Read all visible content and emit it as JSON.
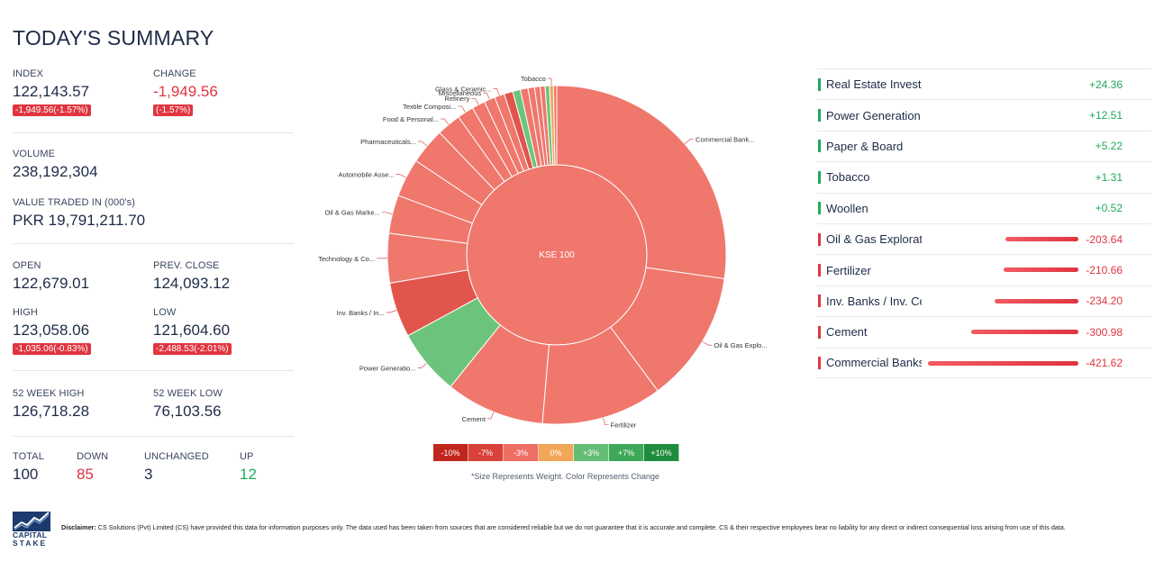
{
  "title": "TODAY'S SUMMARY",
  "stats": {
    "index_label": "INDEX",
    "index_value": "122,143.57",
    "index_badge": "-1,949.56(-1.57%)",
    "change_label": "CHANGE",
    "change_value": "-1,949.56",
    "change_badge": "(-1.57%)",
    "volume_label": "VOLUME",
    "volume_value": "238,192,304",
    "value_traded_label": "VALUE TRADED IN (000's)",
    "value_traded_value": "PKR 19,791,211.70",
    "open_label": "OPEN",
    "open_value": "122,679.01",
    "prev_close_label": "PREV. CLOSE",
    "prev_close_value": "124,093.12",
    "high_label": "HIGH",
    "high_value": "123,058.06",
    "high_badge": "-1,035.06(-0.83%)",
    "low_label": "LOW",
    "low_value": "121,604.60",
    "low_badge": "-2,488.53(-2.01%)",
    "week52_high_label": "52 WEEK HIGH",
    "week52_high_value": "126,718.28",
    "week52_low_label": "52 WEEK LOW",
    "week52_low_value": "76,103.56",
    "total_label": "TOTAL",
    "total_value": "100",
    "down_label": "DOWN",
    "down_value": "85",
    "unchanged_label": "UNCHANGED",
    "unchanged_value": "3",
    "up_label": "UP",
    "up_value": "12"
  },
  "chart_data": {
    "type": "sunburst",
    "center_label": "KSE 100",
    "sectors": [
      {
        "label": "Commercial Bank...",
        "weight": 26.0,
        "change": -1.9,
        "show_label": true
      },
      {
        "label": "Oil & Gas Explo...",
        "weight": 12.0,
        "change": -2.5,
        "show_label": true
      },
      {
        "label": "Fertilizer",
        "weight": 11.0,
        "change": -2.2,
        "show_label": true
      },
      {
        "label": "Cement",
        "weight": 9.0,
        "change": -2.4,
        "show_label": true
      },
      {
        "label": "Power Generatio...",
        "weight": 6.0,
        "change": 2.8,
        "show_label": true
      },
      {
        "label": "Inv. Banks / In...",
        "weight": 5.0,
        "change": -4.5,
        "show_label": true
      },
      {
        "label": "Technology & Co...",
        "weight": 4.5,
        "change": -2.0,
        "show_label": true
      },
      {
        "label": "Oil & Gas Marke...",
        "weight": 3.5,
        "change": -2.3,
        "show_label": true
      },
      {
        "label": "Automobile Asse...",
        "weight": 3.5,
        "change": -2.1,
        "show_label": true
      },
      {
        "label": "Pharmaceuticals...",
        "weight": 3.3,
        "change": -2.2,
        "show_label": true
      },
      {
        "label": "Food & Personal...",
        "weight": 2.2,
        "change": -2.0,
        "show_label": true
      },
      {
        "label": "Textile Composi...",
        "weight": 1.5,
        "change": -2.3,
        "show_label": true
      },
      {
        "label": "Refinery",
        "weight": 1.2,
        "change": -2.6,
        "show_label": true
      },
      {
        "label": "Miscellaneous",
        "weight": 1.0,
        "change": -2.2,
        "show_label": true
      },
      {
        "label": "Glass & Ceramic...",
        "weight": 0.9,
        "change": -2.0,
        "show_label": true
      },
      {
        "label": "",
        "weight": 0.8,
        "change": -4.2,
        "show_label": false
      },
      {
        "label": "",
        "weight": 0.7,
        "change": 3.5,
        "show_label": false
      },
      {
        "label": "",
        "weight": 0.7,
        "change": -2.1,
        "show_label": false
      },
      {
        "label": "",
        "weight": 0.6,
        "change": -2.5,
        "show_label": false
      },
      {
        "label": "",
        "weight": 0.5,
        "change": -3.2,
        "show_label": false
      },
      {
        "label": "",
        "weight": 0.45,
        "change": -1.9,
        "show_label": false
      },
      {
        "label": "",
        "weight": 0.4,
        "change": 2.2,
        "show_label": false
      },
      {
        "label": "Tobacco",
        "weight": 0.35,
        "change": 0.4,
        "show_label": true
      },
      {
        "label": "",
        "weight": 0.3,
        "change": -2.0,
        "show_label": false
      }
    ]
  },
  "legend": {
    "items": [
      {
        "label": "-10%",
        "color": "#c0261d"
      },
      {
        "label": "-7%",
        "color": "#d8413a"
      },
      {
        "label": "-3%",
        "color": "#ef6e63"
      },
      {
        "label": "0%",
        "color": "#f2a657"
      },
      {
        "label": "+3%",
        "color": "#63bd74"
      },
      {
        "label": "+7%",
        "color": "#3ea859"
      },
      {
        "label": "+10%",
        "color": "#1f8c3d"
      }
    ],
    "note": "*Size Represents Weight. Color Represents Change"
  },
  "sectors_list": [
    {
      "name": "Real Estate Investme",
      "value": "+24.36",
      "change": 24.36
    },
    {
      "name": "Power Generation &",
      "value": "+12.51",
      "change": 12.51
    },
    {
      "name": "Paper & Board",
      "value": "+5.22",
      "change": 5.22
    },
    {
      "name": "Tobacco",
      "value": "+1.31",
      "change": 1.31
    },
    {
      "name": "Woollen",
      "value": "+0.52",
      "change": 0.52
    },
    {
      "name": "Oil & Gas Exploratio",
      "value": "-203.64",
      "change": -203.64
    },
    {
      "name": "Fertilizer",
      "value": "-210.66",
      "change": -210.66
    },
    {
      "name": "Inv. Banks / Inv. Cos.",
      "value": "-234.20",
      "change": -234.2
    },
    {
      "name": "Cement",
      "value": "-300.98",
      "change": -300.98
    },
    {
      "name": "Commercial Banks",
      "value": "-421.62",
      "change": -421.62
    }
  ],
  "colors": {
    "up": "#1fa95a",
    "down": "#e0353f",
    "bar_down": "#e0353f",
    "text": "#1d2b47"
  },
  "footer": {
    "logo_line1": "CAPITAL",
    "logo_line2": "STAKE",
    "disclaimer_label": "Disclaimer:",
    "disclaimer_text": "CS Solutions (Pvt) Limited (CS) have provided this data for information purposes only. The data used has been taken from sources that are considered reliable but we do not guarantee that it is accurate and complete. CS & their respective employees bear no liability for any direct or indirect consequential loss arising from use of this data."
  }
}
